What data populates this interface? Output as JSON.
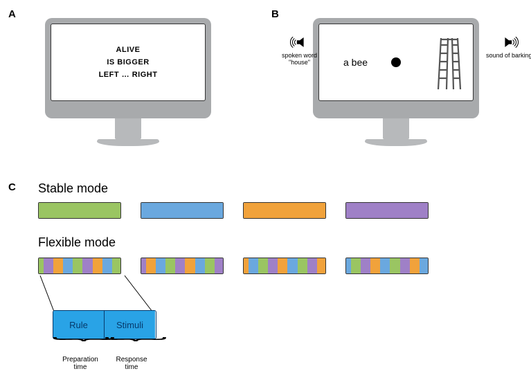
{
  "panels": {
    "A": "A",
    "B": "B",
    "C": "C"
  },
  "colors": {
    "green": "#9ac562",
    "blue": "#6aa8df",
    "orange": "#f1a23b",
    "purple": "#9f80c7",
    "insetFill": "#29a3e6",
    "insetBorder": "#063a6b",
    "imacBody": "#a8aaac",
    "screenBg": "#ffffff"
  },
  "screenA": {
    "line1": "ALIVE",
    "line2": "IS BIGGER",
    "line3": "LEFT … RIGHT"
  },
  "screenB": {
    "leftText": "a bee",
    "leftSpeaker": {
      "label1": "spoken word",
      "label2": "\"house\""
    },
    "rightSpeaker": {
      "label": "sound of barking"
    }
  },
  "panelC": {
    "stableLabel": "Stable mode",
    "flexibleLabel": "Flexible mode",
    "blockWidth": 120,
    "blockHeight": 24,
    "stripesPerBlock": 17,
    "stableColors": [
      "green",
      "blue",
      "orange",
      "purple"
    ],
    "flexiblePalette": [
      "green",
      "blue",
      "orange",
      "purple"
    ],
    "inset": {
      "ruleLabel": "Rule",
      "stimuliLabel": "Stimuli",
      "prepLabel1": "Preparation",
      "prepLabel2": "time",
      "respLabel1": "Response",
      "respLabel2": "time"
    }
  }
}
